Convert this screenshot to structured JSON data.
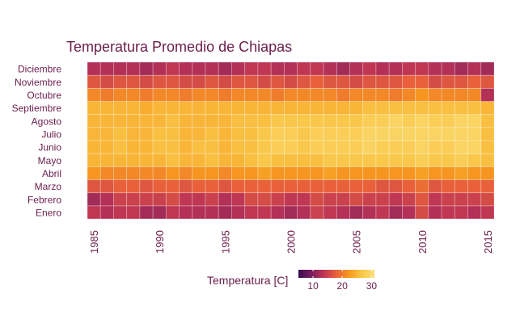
{
  "chart_data": {
    "type": "heatmap",
    "title": "Temperatura Promedio de Chiapas",
    "xlabel": "",
    "ylabel": "",
    "x_ticks": [
      1985,
      1990,
      1995,
      2000,
      2005,
      2010,
      2015
    ],
    "x_range": [
      1985,
      2015
    ],
    "y_categories": [
      "Enero",
      "Febrero",
      "Marzo",
      "Abril",
      "Mayo",
      "Junio",
      "Julio",
      "Agosto",
      "Septiembre",
      "Octubre",
      "Noviembre",
      "Diciembre"
    ],
    "legend": {
      "title": "Temperatura [C]",
      "ticks": [
        10,
        20,
        30
      ],
      "range": [
        5,
        31
      ],
      "placement": "bottom"
    },
    "color_scale": [
      "#3a0d4f",
      "#7a1c5e",
      "#bd3455",
      "#e8613a",
      "#f79a1e",
      "#f9c646",
      "#fbe07a"
    ],
    "grid": true,
    "years": [
      1985,
      1986,
      1987,
      1988,
      1989,
      1990,
      1991,
      1992,
      1993,
      1994,
      1995,
      1996,
      1997,
      1998,
      1999,
      2000,
      2001,
      2002,
      2003,
      2004,
      2005,
      2006,
      2007,
      2008,
      2009,
      2010,
      2011,
      2012,
      2013,
      2014,
      2015
    ],
    "values": [
      [
        14,
        13,
        14,
        14,
        12,
        12,
        14,
        13,
        13,
        13,
        12,
        13,
        14,
        14,
        13,
        12,
        13,
        15,
        14,
        13,
        12,
        13,
        14,
        12,
        13,
        16,
        13,
        14,
        14,
        13,
        14
      ],
      [
        12,
        13,
        15,
        15,
        15,
        15,
        16,
        14,
        14,
        15,
        13,
        14,
        16,
        16,
        15,
        14,
        14,
        16,
        15,
        15,
        16,
        15,
        15,
        14,
        15,
        17,
        14,
        15,
        15,
        15,
        16
      ],
      [
        17,
        17,
        18,
        18,
        17,
        18,
        18,
        17,
        18,
        18,
        17,
        18,
        18,
        18,
        18,
        18,
        18,
        18,
        18,
        18,
        18,
        18,
        17,
        17,
        18,
        19,
        17,
        18,
        18,
        18,
        18
      ],
      [
        22,
        21,
        21,
        21,
        21,
        21,
        22,
        21,
        22,
        22,
        21,
        22,
        22,
        23,
        22,
        22,
        22,
        22,
        23,
        22,
        22,
        22,
        22,
        22,
        22,
        23,
        22,
        22,
        23,
        22,
        22
      ],
      [
        25,
        25,
        25,
        25,
        25,
        25,
        26,
        25,
        25,
        26,
        25,
        25,
        26,
        27,
        26,
        26,
        26,
        26,
        27,
        27,
        27,
        27,
        27,
        27,
        27,
        28,
        27,
        27,
        28,
        27,
        26
      ],
      [
        25,
        25,
        26,
        25,
        25,
        26,
        26,
        25,
        26,
        26,
        25,
        26,
        26,
        27,
        28,
        28,
        27,
        28,
        28,
        28,
        28,
        29,
        28,
        28,
        28,
        29,
        28,
        28,
        29,
        29,
        26
      ],
      [
        25,
        25,
        26,
        25,
        25,
        26,
        26,
        25,
        25,
        26,
        25,
        26,
        26,
        27,
        28,
        28,
        27,
        28,
        28,
        28,
        28,
        29,
        29,
        29,
        29,
        29,
        29,
        29,
        29,
        29,
        26
      ],
      [
        25,
        25,
        25,
        25,
        25,
        25,
        26,
        25,
        25,
        25,
        25,
        26,
        26,
        26,
        27,
        27,
        27,
        27,
        27,
        27,
        27,
        28,
        28,
        29,
        28,
        29,
        28,
        28,
        29,
        29,
        26
      ],
      [
        25,
        25,
        25,
        25,
        24,
        25,
        25,
        25,
        25,
        25,
        25,
        25,
        25,
        25,
        25,
        25,
        25,
        25,
        25,
        25,
        25,
        26,
        26,
        26,
        26,
        26,
        26,
        26,
        26,
        26,
        25
      ],
      [
        21,
        20,
        21,
        21,
        20,
        21,
        21,
        20,
        21,
        21,
        20,
        21,
        21,
        21,
        20,
        21,
        21,
        21,
        21,
        20,
        21,
        21,
        21,
        20,
        21,
        22,
        21,
        21,
        21,
        21,
        13
      ],
      [
        17,
        16,
        17,
        17,
        16,
        17,
        17,
        16,
        16,
        17,
        16,
        17,
        17,
        16,
        17,
        16,
        17,
        18,
        17,
        17,
        16,
        17,
        17,
        17,
        18,
        18,
        16,
        17,
        17,
        18,
        17
      ],
      [
        13,
        13,
        13,
        13,
        12,
        13,
        14,
        13,
        13,
        13,
        12,
        13,
        14,
        14,
        13,
        13,
        14,
        14,
        13,
        12,
        13,
        14,
        13,
        13,
        14,
        14,
        13,
        13,
        12,
        13,
        12
      ]
    ]
  }
}
